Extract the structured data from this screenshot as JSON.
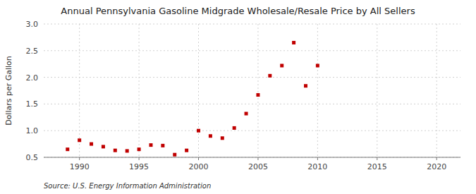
{
  "chart_data": {
    "type": "scatter",
    "title": "Annual Pennsylvania Gasoline Midgrade Wholesale/Resale Price by All Sellers",
    "y_label": "Dollars per Gallon",
    "source": "Source: U.S. Energy Information Administration",
    "x": [
      1989,
      1990,
      1991,
      1992,
      1993,
      1994,
      1995,
      1996,
      1997,
      1998,
      1999,
      2000,
      2001,
      2002,
      2003,
      2004,
      2005,
      2006,
      2007,
      2008,
      2009,
      2010
    ],
    "values": [
      0.65,
      0.82,
      0.75,
      0.7,
      0.63,
      0.62,
      0.65,
      0.73,
      0.72,
      0.55,
      0.63,
      1.0,
      0.9,
      0.86,
      1.05,
      1.32,
      1.67,
      2.03,
      2.22,
      2.65,
      1.84,
      2.22
    ],
    "color": "#c00000",
    "marker": "square",
    "xlim": [
      1987,
      2022
    ],
    "ylim": [
      0.5,
      3.0
    ],
    "xticks": [
      1990,
      1995,
      2000,
      2005,
      2010,
      2015,
      2020
    ],
    "yticks": [
      0.5,
      {
        "value": 1.0,
        "label": "1.0"
      },
      1.5,
      {
        "value": 2.0,
        "label": "2.0"
      },
      2.5,
      {
        "value": 3.0,
        "label": "3.0"
      }
    ],
    "grid": true
  }
}
